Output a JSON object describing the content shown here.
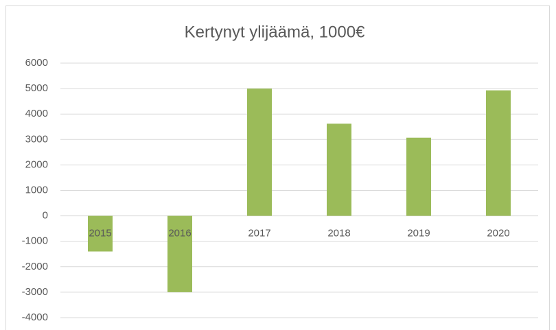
{
  "chart_data": {
    "type": "bar",
    "title": "Kertynyt ylijäämä, 1000€",
    "categories": [
      "2015",
      "2016",
      "2017",
      "2018",
      "2019",
      "2020"
    ],
    "values": [
      -1400,
      -3000,
      5000,
      3620,
      3070,
      4930
    ],
    "color": "#9bbb59",
    "ylim": [
      -4000,
      6000
    ],
    "yticks": [
      -4000,
      -3000,
      -2000,
      -1000,
      0,
      1000,
      2000,
      3000,
      4000,
      5000,
      6000
    ],
    "grid": true
  }
}
